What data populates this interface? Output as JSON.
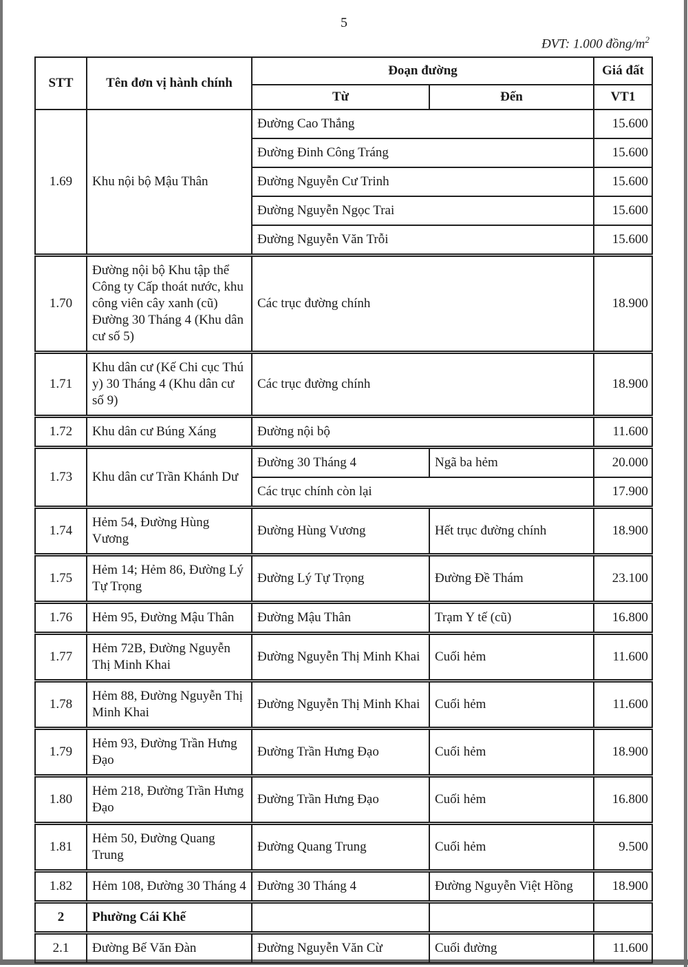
{
  "page": {
    "number": "5",
    "unit_note": "ĐVT: 1.000 đồng/m",
    "unit_note_sup": "2"
  },
  "table": {
    "headers": {
      "stt": "STT",
      "admin_unit": "Tên đơn vị hành chính",
      "road_segment": "Đoạn đường",
      "from": "Từ",
      "to": "Đến",
      "price": "Giá đất",
      "price_pos": "VT1"
    },
    "rows": [
      {
        "sep": false,
        "cells": [
          {
            "name": "stt-cell",
            "text": "1.69",
            "rs": 5,
            "cls": "stt"
          },
          {
            "name": "admin-unit-cell",
            "text": "Khu nội bộ Mậu Thân",
            "rs": 5
          },
          {
            "name": "segment-cell",
            "text": "Đường Cao Thắng",
            "cs": 2
          },
          {
            "name": "price-cell",
            "text": "15.600",
            "cls": "num"
          }
        ]
      },
      {
        "sep": false,
        "cells": [
          {
            "name": "segment-cell",
            "text": "Đường Đinh Công Tráng",
            "cs": 2
          },
          {
            "name": "price-cell",
            "text": "15.600",
            "cls": "num"
          }
        ]
      },
      {
        "sep": false,
        "cells": [
          {
            "name": "segment-cell",
            "text": "Đường Nguyễn Cư Trinh",
            "cs": 2
          },
          {
            "name": "price-cell",
            "text": "15.600",
            "cls": "num"
          }
        ]
      },
      {
        "sep": false,
        "cells": [
          {
            "name": "segment-cell",
            "text": "Đường Nguyễn Ngọc Trai",
            "cs": 2
          },
          {
            "name": "price-cell",
            "text": "15.600",
            "cls": "num"
          }
        ]
      },
      {
        "sep": false,
        "cells": [
          {
            "name": "segment-cell",
            "text": "Đường Nguyễn Văn Trỗi",
            "cs": 2
          },
          {
            "name": "price-cell",
            "text": "15.600",
            "cls": "num"
          }
        ]
      },
      {
        "sep": true,
        "cells": [
          {
            "name": "stt-cell",
            "text": "1.70",
            "cls": "stt"
          },
          {
            "name": "admin-unit-cell",
            "text": "Đường nội bộ Khu tập thể Công ty Cấp thoát nước, khu công viên cây xanh (cũ) Đường 30 Tháng 4 (Khu dân cư số 5)"
          },
          {
            "name": "segment-cell",
            "text": "Các trục đường chính",
            "cs": 2
          },
          {
            "name": "price-cell",
            "text": "18.900",
            "cls": "num"
          }
        ]
      },
      {
        "sep": true,
        "cells": [
          {
            "name": "stt-cell",
            "text": "1.71",
            "cls": "stt"
          },
          {
            "name": "admin-unit-cell",
            "text": "Khu dân cư (Kế Chi cục Thú y) 30 Tháng 4 (Khu dân cư số 9)"
          },
          {
            "name": "segment-cell",
            "text": "Các trục đường chính",
            "cs": 2
          },
          {
            "name": "price-cell",
            "text": "18.900",
            "cls": "num"
          }
        ]
      },
      {
        "sep": true,
        "cells": [
          {
            "name": "stt-cell",
            "text": "1.72",
            "cls": "stt"
          },
          {
            "name": "admin-unit-cell",
            "text": "Khu dân cư Búng Xáng"
          },
          {
            "name": "segment-cell",
            "text": "Đường nội bộ",
            "cs": 2
          },
          {
            "name": "price-cell",
            "text": "11.600",
            "cls": "num"
          }
        ]
      },
      {
        "sep": true,
        "cells": [
          {
            "name": "stt-cell",
            "text": "1.73",
            "rs": 2,
            "cls": "stt"
          },
          {
            "name": "admin-unit-cell",
            "text": "Khu dân cư Trần Khánh Dư",
            "rs": 2
          },
          {
            "name": "from-cell",
            "text": "Đường 30 Tháng 4"
          },
          {
            "name": "to-cell",
            "text": "Ngã ba hẻm"
          },
          {
            "name": "price-cell",
            "text": "20.000",
            "cls": "num"
          }
        ]
      },
      {
        "sep": false,
        "cells": [
          {
            "name": "segment-cell",
            "text": "Các trục chính còn lại",
            "cs": 2
          },
          {
            "name": "price-cell",
            "text": "17.900",
            "cls": "num"
          }
        ]
      },
      {
        "sep": true,
        "cells": [
          {
            "name": "stt-cell",
            "text": "1.74",
            "cls": "stt"
          },
          {
            "name": "admin-unit-cell",
            "text": "Hẻm 54, Đường Hùng Vương"
          },
          {
            "name": "from-cell",
            "text": "Đường Hùng Vương"
          },
          {
            "name": "to-cell",
            "text": "Hết trục đường chính"
          },
          {
            "name": "price-cell",
            "text": "18.900",
            "cls": "num"
          }
        ]
      },
      {
        "sep": true,
        "cells": [
          {
            "name": "stt-cell",
            "text": "1.75",
            "cls": "stt"
          },
          {
            "name": "admin-unit-cell",
            "text": "Hẻm 14; Hẻm 86, Đường Lý Tự Trọng"
          },
          {
            "name": "from-cell",
            "text": "Đường Lý Tự Trọng"
          },
          {
            "name": "to-cell",
            "text": "Đường Đề Thám"
          },
          {
            "name": "price-cell",
            "text": "23.100",
            "cls": "num"
          }
        ]
      },
      {
        "sep": true,
        "cells": [
          {
            "name": "stt-cell",
            "text": "1.76",
            "cls": "stt"
          },
          {
            "name": "admin-unit-cell",
            "text": "Hẻm 95, Đường Mậu Thân"
          },
          {
            "name": "from-cell",
            "text": "Đường Mậu Thân"
          },
          {
            "name": "to-cell",
            "text": "Trạm Y tế (cũ)"
          },
          {
            "name": "price-cell",
            "text": "16.800",
            "cls": "num"
          }
        ]
      },
      {
        "sep": true,
        "cells": [
          {
            "name": "stt-cell",
            "text": "1.77",
            "cls": "stt"
          },
          {
            "name": "admin-unit-cell",
            "text": "Hẻm 72B, Đường Nguyễn Thị Minh Khai"
          },
          {
            "name": "from-cell",
            "text": "Đường Nguyễn Thị Minh Khai"
          },
          {
            "name": "to-cell",
            "text": "Cuối hẻm"
          },
          {
            "name": "price-cell",
            "text": "11.600",
            "cls": "num"
          }
        ]
      },
      {
        "sep": true,
        "cells": [
          {
            "name": "stt-cell",
            "text": "1.78",
            "cls": "stt"
          },
          {
            "name": "admin-unit-cell",
            "text": "Hẻm 88, Đường Nguyễn Thị Minh Khai"
          },
          {
            "name": "from-cell",
            "text": "Đường Nguyễn Thị Minh Khai"
          },
          {
            "name": "to-cell",
            "text": "Cuối hẻm"
          },
          {
            "name": "price-cell",
            "text": "11.600",
            "cls": "num"
          }
        ]
      },
      {
        "sep": true,
        "cells": [
          {
            "name": "stt-cell",
            "text": "1.79",
            "cls": "stt"
          },
          {
            "name": "admin-unit-cell",
            "text": "Hẻm 93, Đường Trần Hưng Đạo"
          },
          {
            "name": "from-cell",
            "text": "Đường Trần Hưng Đạo"
          },
          {
            "name": "to-cell",
            "text": "Cuối hẻm"
          },
          {
            "name": "price-cell",
            "text": "18.900",
            "cls": "num"
          }
        ]
      },
      {
        "sep": true,
        "cells": [
          {
            "name": "stt-cell",
            "text": "1.80",
            "cls": "stt"
          },
          {
            "name": "admin-unit-cell",
            "text": "Hẻm 218, Đường Trần Hưng Đạo"
          },
          {
            "name": "from-cell",
            "text": "Đường Trần Hưng Đạo"
          },
          {
            "name": "to-cell",
            "text": "Cuối hẻm"
          },
          {
            "name": "price-cell",
            "text": "16.800",
            "cls": "num"
          }
        ]
      },
      {
        "sep": true,
        "cells": [
          {
            "name": "stt-cell",
            "text": "1.81",
            "cls": "stt"
          },
          {
            "name": "admin-unit-cell",
            "text": "Hẻm 50, Đường Quang Trung"
          },
          {
            "name": "from-cell",
            "text": "Đường Quang Trung"
          },
          {
            "name": "to-cell",
            "text": "Cuối hẻm"
          },
          {
            "name": "price-cell",
            "text": "9.500",
            "cls": "num"
          }
        ]
      },
      {
        "sep": true,
        "cells": [
          {
            "name": "stt-cell",
            "text": "1.82",
            "cls": "stt"
          },
          {
            "name": "admin-unit-cell",
            "text": "Hẻm 108, Đường 30 Tháng 4"
          },
          {
            "name": "from-cell",
            "text": "Đường 30 Tháng 4"
          },
          {
            "name": "to-cell",
            "text": "Đường Nguyễn Việt Hồng"
          },
          {
            "name": "price-cell",
            "text": "18.900",
            "cls": "num"
          }
        ]
      },
      {
        "sep": true,
        "section": true,
        "cells": [
          {
            "name": "stt-cell",
            "text": "2",
            "cls": "stt"
          },
          {
            "name": "admin-unit-cell",
            "text": "Phường Cái Khế"
          },
          {
            "name": "from-cell",
            "text": ""
          },
          {
            "name": "to-cell",
            "text": ""
          },
          {
            "name": "price-cell",
            "text": "",
            "cls": "num"
          }
        ]
      },
      {
        "sep": true,
        "cells": [
          {
            "name": "stt-cell",
            "text": "2.1",
            "cls": "stt"
          },
          {
            "name": "admin-unit-cell",
            "text": "Đường Bế Văn Đàn"
          },
          {
            "name": "from-cell",
            "text": "Đường Nguyễn Văn Cừ"
          },
          {
            "name": "to-cell",
            "text": "Cuối đường"
          },
          {
            "name": "price-cell",
            "text": "11.600",
            "cls": "num"
          }
        ]
      }
    ]
  }
}
